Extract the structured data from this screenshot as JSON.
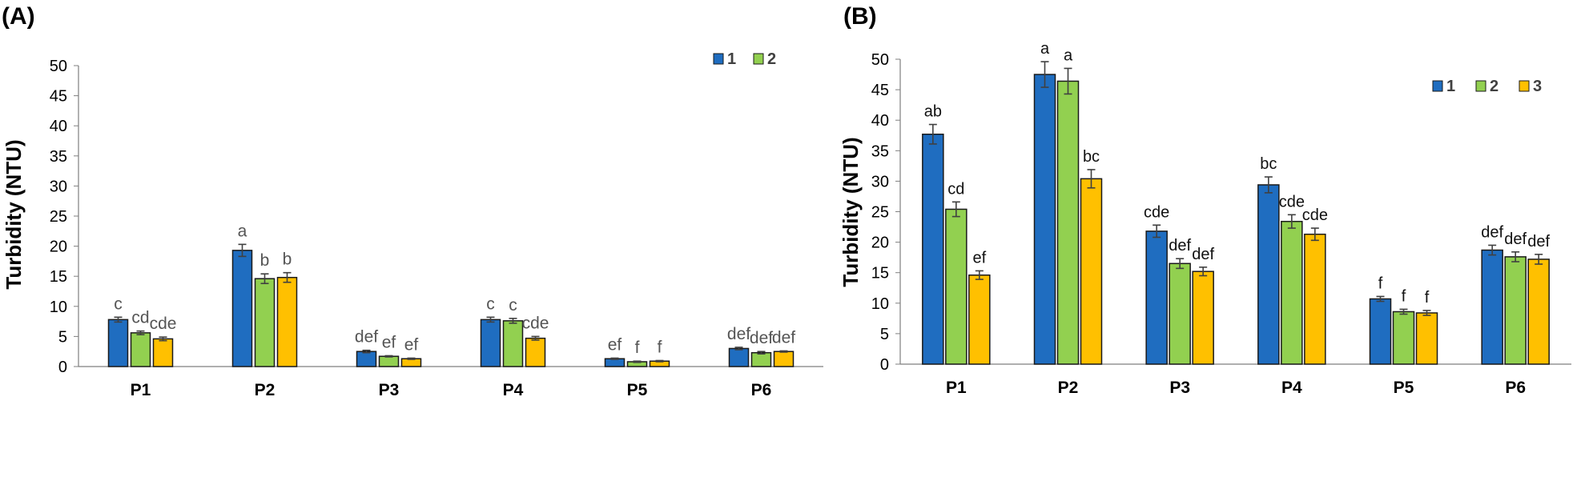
{
  "colors": {
    "s1": "#1F6DC0",
    "s2": "#92D050",
    "s3": "#FFC000",
    "err": "#404040",
    "bar_edge": "#1a1a1a",
    "sig_a": "#555555",
    "sig_b": "#111111"
  },
  "chart_data": [
    {
      "panel": "(A)",
      "type": "bar",
      "ylabel": "Turbidity (NTU)",
      "xlabel": "",
      "ylim": [
        0,
        50
      ],
      "yticks": [
        0,
        5,
        10,
        15,
        20,
        25,
        30,
        35,
        40,
        45,
        50
      ],
      "legend": [
        "1",
        "2"
      ],
      "legend_position": "top-right",
      "grid": false,
      "categories": [
        "P1",
        "P2",
        "P3",
        "P4",
        "P5",
        "P6"
      ],
      "series": [
        {
          "name": "1",
          "values": [
            7.8,
            19.3,
            2.5,
            7.8,
            1.3,
            3.0
          ],
          "errors": [
            0.4,
            1.0,
            0.2,
            0.4,
            0.1,
            0.2
          ]
        },
        {
          "name": "2",
          "values": [
            5.6,
            14.6,
            1.7,
            7.6,
            0.8,
            2.3
          ],
          "errors": [
            0.3,
            0.8,
            0.1,
            0.4,
            0.1,
            0.2
          ]
        },
        {
          "values": [
            4.6,
            14.8,
            1.3,
            4.7,
            0.9,
            2.5
          ],
          "errors": [
            0.3,
            0.8,
            0.1,
            0.3,
            0.1,
            0.1
          ]
        }
      ],
      "significance": [
        [
          "c",
          "cd",
          "cde"
        ],
        [
          "a",
          "b",
          "b"
        ],
        [
          "def",
          "ef",
          "ef"
        ],
        [
          "c",
          "c",
          "cde"
        ],
        [
          "ef",
          "f",
          "f"
        ],
        [
          "def",
          "def",
          "def"
        ]
      ]
    },
    {
      "panel": "(B)",
      "type": "bar",
      "ylabel": "Turbidity (NTU)",
      "xlabel": "",
      "ylim": [
        0,
        50
      ],
      "yticks": [
        0,
        5,
        10,
        15,
        20,
        25,
        30,
        35,
        40,
        45,
        50
      ],
      "legend": [
        "1",
        "2",
        "3"
      ],
      "legend_position": "top-right",
      "grid": false,
      "categories": [
        "P1",
        "P2",
        "P3",
        "P4",
        "P5",
        "P6"
      ],
      "series": [
        {
          "name": "1",
          "values": [
            37.7,
            47.5,
            21.8,
            29.4,
            10.7,
            18.7
          ],
          "errors": [
            1.6,
            2.1,
            1.0,
            1.3,
            0.4,
            0.8
          ]
        },
        {
          "name": "2",
          "values": [
            25.4,
            46.4,
            16.5,
            23.4,
            8.6,
            17.6
          ],
          "errors": [
            1.2,
            2.1,
            0.8,
            1.1,
            0.4,
            0.8
          ]
        },
        {
          "name": "3",
          "values": [
            14.6,
            30.4,
            15.2,
            21.3,
            8.4,
            17.2
          ],
          "errors": [
            0.7,
            1.5,
            0.7,
            1.0,
            0.4,
            0.8
          ]
        }
      ],
      "significance": [
        [
          "ab",
          "cd",
          "ef"
        ],
        [
          "a",
          "a",
          "bc"
        ],
        [
          "cde",
          "def",
          "def"
        ],
        [
          "bc",
          "cde",
          "cde"
        ],
        [
          "f",
          "f",
          "f"
        ],
        [
          "def",
          "def",
          "def"
        ]
      ]
    }
  ]
}
